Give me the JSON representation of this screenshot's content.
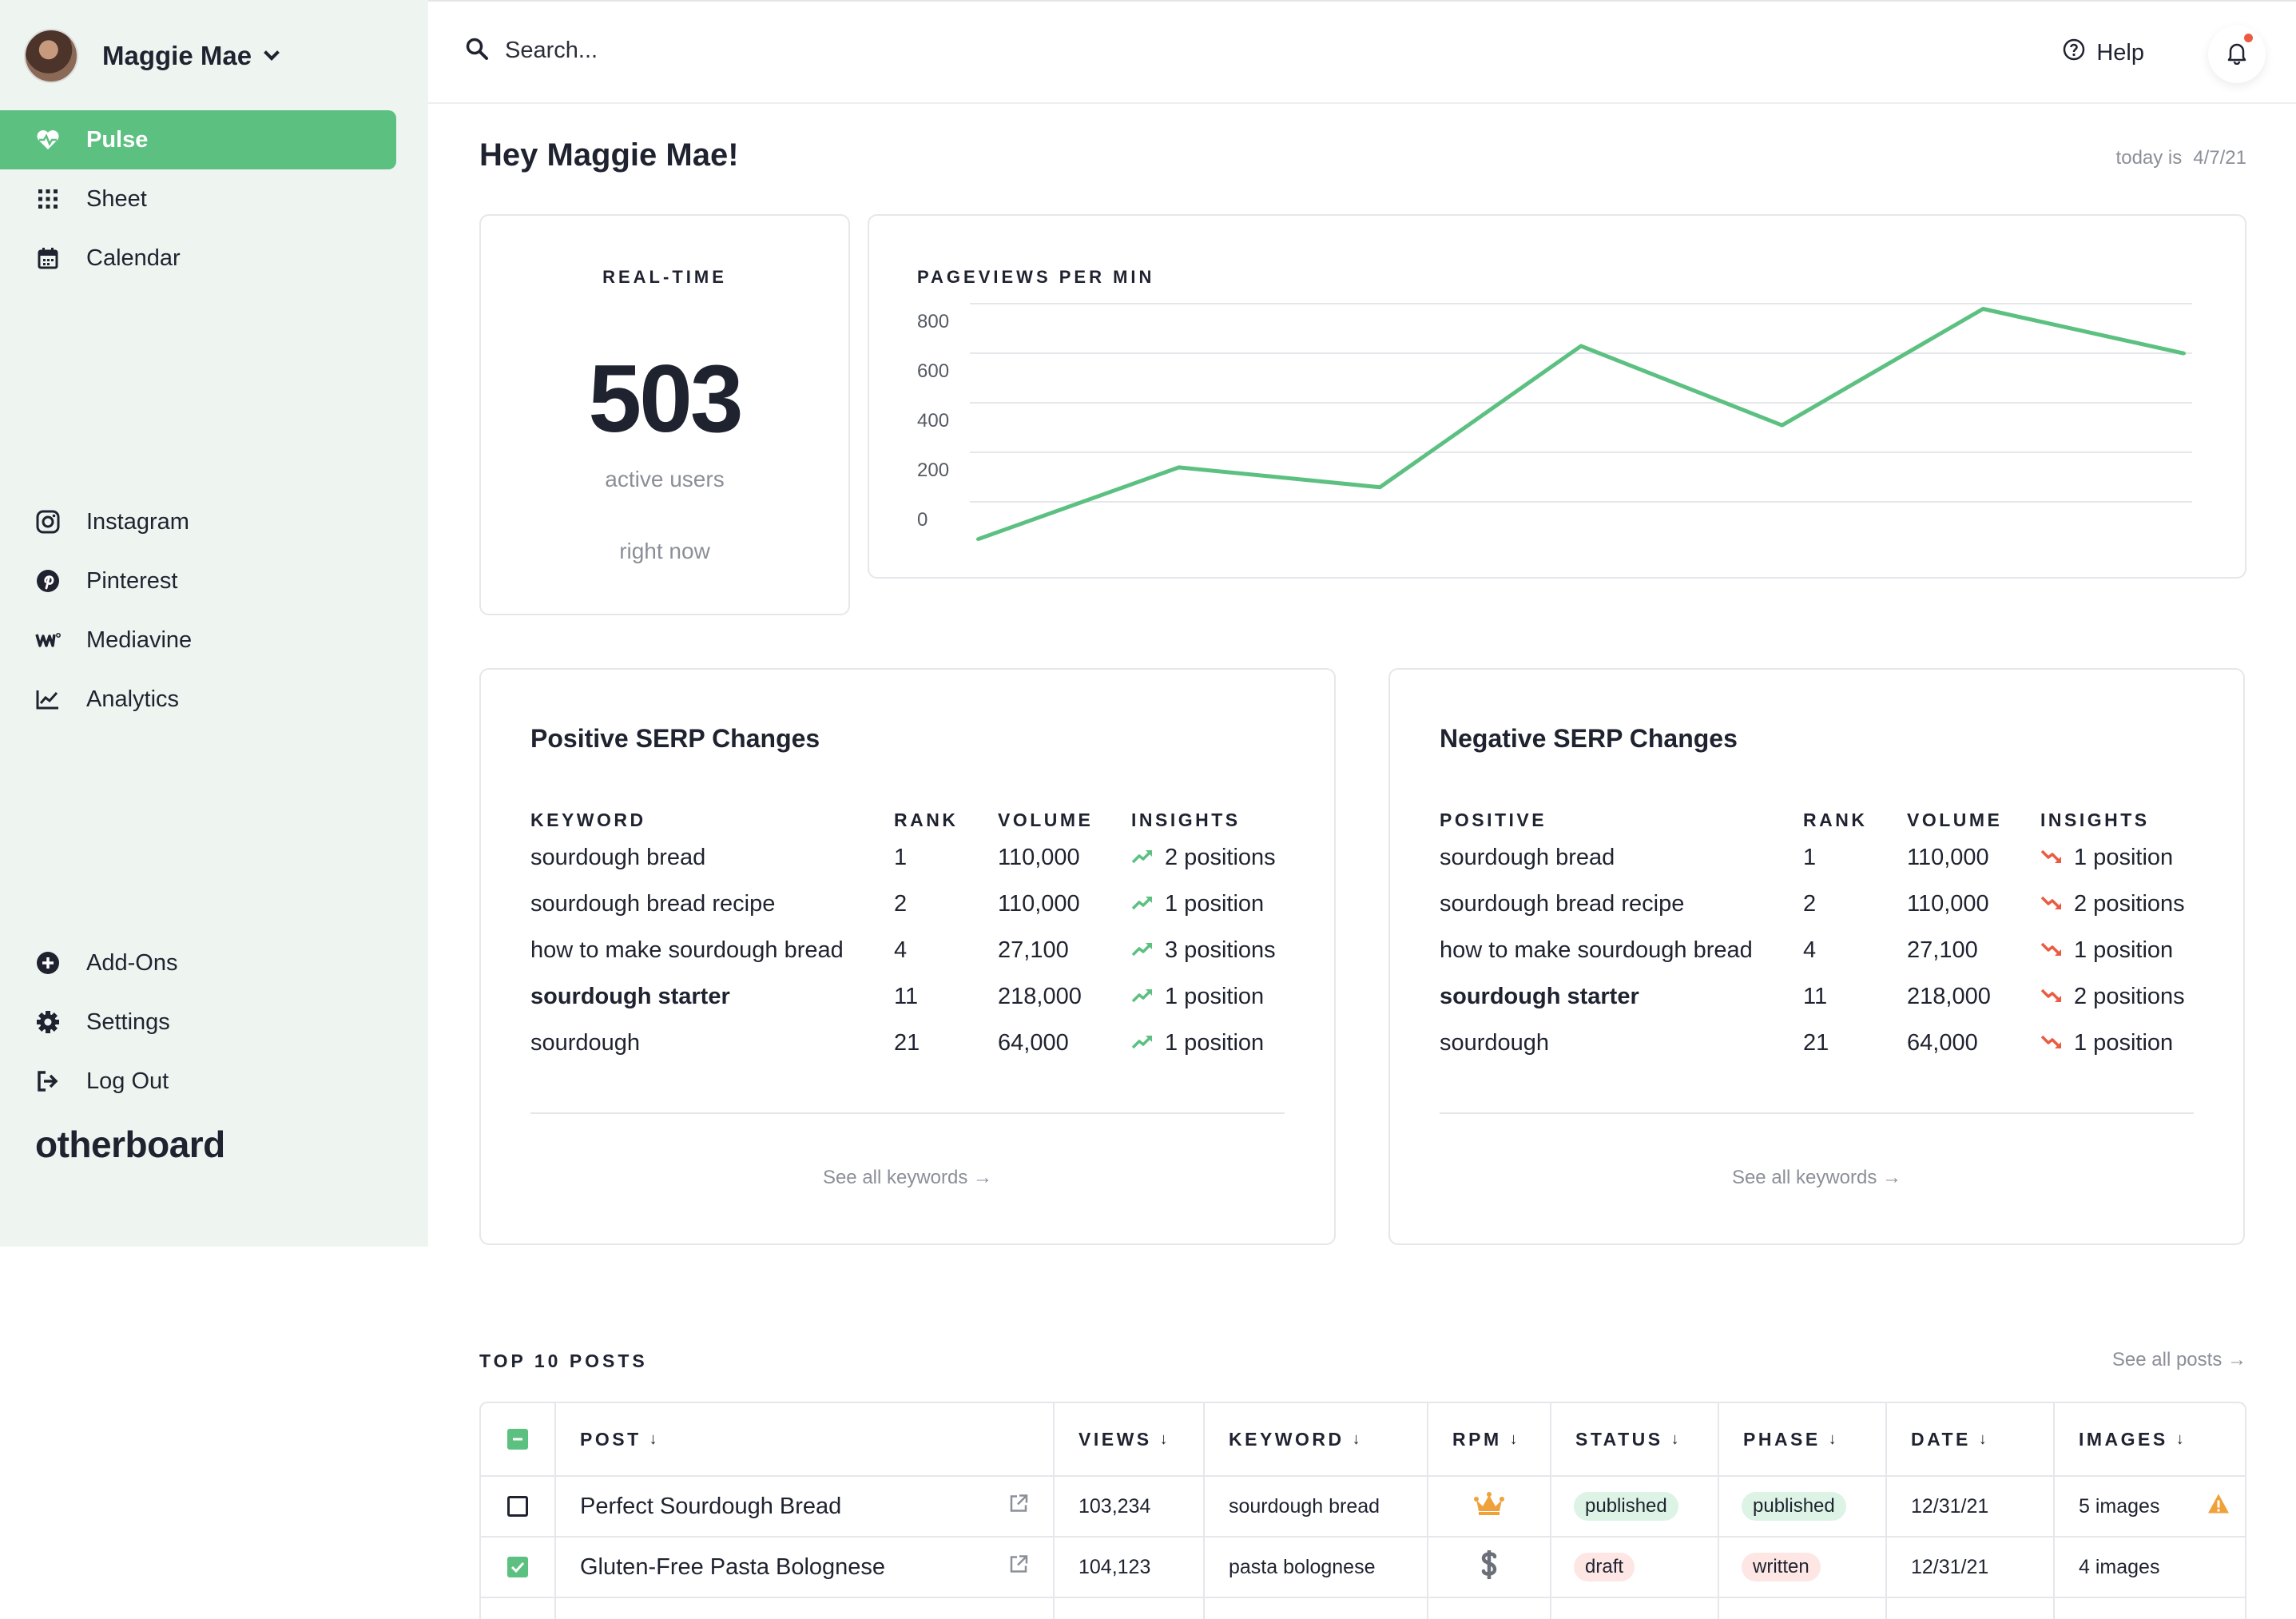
{
  "user": {
    "name": "Maggie Mae"
  },
  "nav": {
    "primary": [
      {
        "label": "Pulse",
        "icon": "heart-pulse-icon",
        "active": true
      },
      {
        "label": "Sheet",
        "icon": "grid-icon"
      },
      {
        "label": "Calendar",
        "icon": "calendar-icon"
      }
    ],
    "social": [
      {
        "label": "Instagram",
        "icon": "instagram-icon"
      },
      {
        "label": "Pinterest",
        "icon": "pinterest-icon"
      },
      {
        "label": "Mediavine",
        "icon": "mediavine-icon"
      },
      {
        "label": "Analytics",
        "icon": "analytics-icon"
      }
    ],
    "bottom": [
      {
        "label": "Add-Ons",
        "icon": "plus-circle-icon"
      },
      {
        "label": "Settings",
        "icon": "gear-icon"
      },
      {
        "label": "Log Out",
        "icon": "logout-icon"
      }
    ],
    "brand": "otherboard"
  },
  "topbar": {
    "search_placeholder": "Search...",
    "help_label": "Help",
    "notifications_unread": true
  },
  "greeting": "Hey Maggie Mae!",
  "today": {
    "label": "today is",
    "date": "4/7/21"
  },
  "realtime": {
    "label": "REAL-TIME",
    "value": "503",
    "sub1": "active users",
    "sub2": "right now"
  },
  "pageviews": {
    "label": "PAGEVIEWS PER MIN",
    "chart_data": {
      "type": "line",
      "title": "PAGEVIEWS PER MIN",
      "ylim": [
        0,
        800
      ],
      "yticks": [
        0,
        200,
        400,
        600,
        800
      ],
      "grid": true,
      "series": [
        {
          "values": [
            -80,
            210,
            130,
            700,
            380,
            850,
            670
          ]
        }
      ],
      "color": "#5cc081"
    }
  },
  "serp_positive": {
    "title": "Positive SERP Changes",
    "headers": [
      "KEYWORD",
      "RANK",
      "VOLUME",
      "INSIGHTS"
    ],
    "rows": [
      {
        "keyword": "sourdough bread",
        "rank": "1",
        "volume": "110,000",
        "insight": "2 positions",
        "bold": false
      },
      {
        "keyword": "sourdough bread recipe",
        "rank": "2",
        "volume": "110,000",
        "insight": "1 position",
        "bold": false
      },
      {
        "keyword": "how to make sourdough bread",
        "rank": "4",
        "volume": "27,100",
        "insight": "3 positions",
        "bold": false
      },
      {
        "keyword": "sourdough starter",
        "rank": "11",
        "volume": "218,000",
        "insight": "1 position",
        "bold": true
      },
      {
        "keyword": "sourdough",
        "rank": "21",
        "volume": "64,000",
        "insight": "1 position",
        "bold": false
      }
    ],
    "see_all": "See all keywords →",
    "trend_color": "#5cc081"
  },
  "serp_negative": {
    "title": "Negative SERP Changes",
    "headers": [
      "POSITIVE",
      "RANK",
      "VOLUME",
      "INSIGHTS"
    ],
    "rows": [
      {
        "keyword": "sourdough bread",
        "rank": "1",
        "volume": "110,000",
        "insight": "1 position",
        "bold": false
      },
      {
        "keyword": "sourdough bread recipe",
        "rank": "2",
        "volume": "110,000",
        "insight": "2 positions",
        "bold": false
      },
      {
        "keyword": "how to make sourdough bread",
        "rank": "4",
        "volume": "27,100",
        "insight": "1 position",
        "bold": false
      },
      {
        "keyword": "sourdough starter",
        "rank": "11",
        "volume": "218,000",
        "insight": "2 positions",
        "bold": true
      },
      {
        "keyword": "sourdough",
        "rank": "21",
        "volume": "64,000",
        "insight": "1 position",
        "bold": false
      }
    ],
    "see_all": "See all keywords →",
    "trend_color": "#ec5b41"
  },
  "top_posts": {
    "label": "TOP 10 POSTS",
    "see_all": "See all posts →",
    "headers": [
      "POST",
      "VIEWS",
      "KEYWORD",
      "RPM",
      "STATUS",
      "PHASE",
      "DATE",
      "IMAGES"
    ],
    "rows": [
      {
        "checked": false,
        "post": "Perfect Sourdough Bread",
        "views": "103,234",
        "keyword": "sourdough bread",
        "rpm_icon": "crown-icon",
        "status": "published",
        "phase": "published",
        "date": "12/31/21",
        "images": "5 images",
        "warning": true
      },
      {
        "checked": true,
        "post": "Gluten-Free Pasta Bolognese",
        "views": "104,123",
        "keyword": "pasta bolognese",
        "rpm_icon": "dollar-icon",
        "status": "draft",
        "phase": "written",
        "date": "12/31/21",
        "images": "4 images",
        "warning": false
      }
    ]
  }
}
